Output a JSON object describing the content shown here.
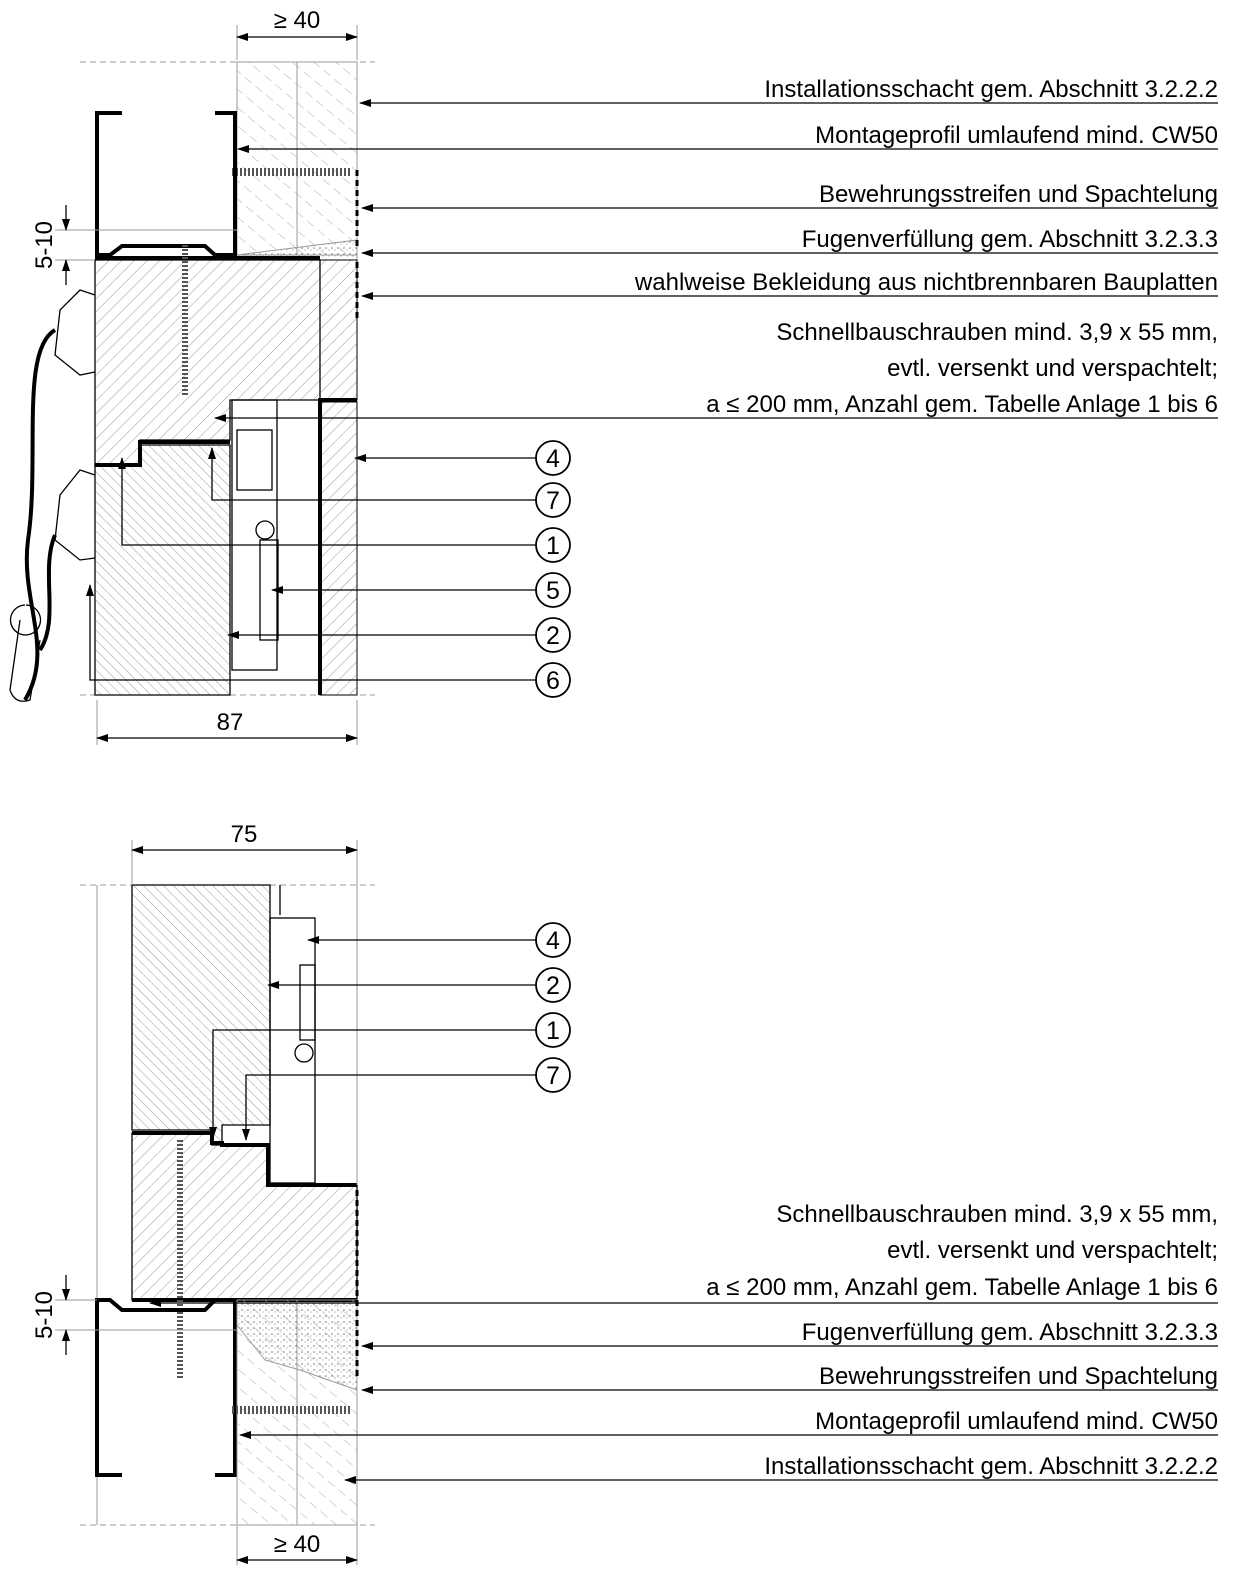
{
  "top": {
    "dimensions": [
      "≥ 40",
      "5-10",
      "87"
    ],
    "labels": [
      "Installationsschacht gem. Abschnitt 3.2.2.2",
      "Montageprofil umlaufend mind. CW50",
      "Bewehrungsstreifen und Spachtelung",
      "Fugenverfüllung gem. Abschnitt 3.2.3.3",
      "wahlweise Bekleidung aus nichtbrennbaren Bauplatten"
    ],
    "screw_note": [
      "Schnellbauschrauben mind. 3,9 x 55 mm,",
      "evtl. versenkt und verspachtelt;",
      "a ≤ 200 mm, Anzahl gem. Tabelle Anlage 1 bis 6"
    ],
    "callouts": [
      "4",
      "7",
      "1",
      "5",
      "2",
      "6"
    ]
  },
  "bottom": {
    "dimensions": [
      "75",
      "5-10",
      "≥ 40"
    ],
    "screw_note": [
      "Schnellbauschrauben mind. 3,9 x 55 mm,",
      "evtl. versenkt und verspachtelt;",
      "a ≤ 200 mm, Anzahl gem. Tabelle Anlage 1 bis 6"
    ],
    "labels": [
      "Fugenverfüllung gem. Abschnitt 3.2.3.3",
      "Bewehrungsstreifen und Spachtelung",
      "Montageprofil umlaufend mind. CW50",
      "Installationsschacht gem. Abschnitt 3.2.2.2"
    ],
    "callouts": [
      "4",
      "2",
      "1",
      "7"
    ]
  }
}
